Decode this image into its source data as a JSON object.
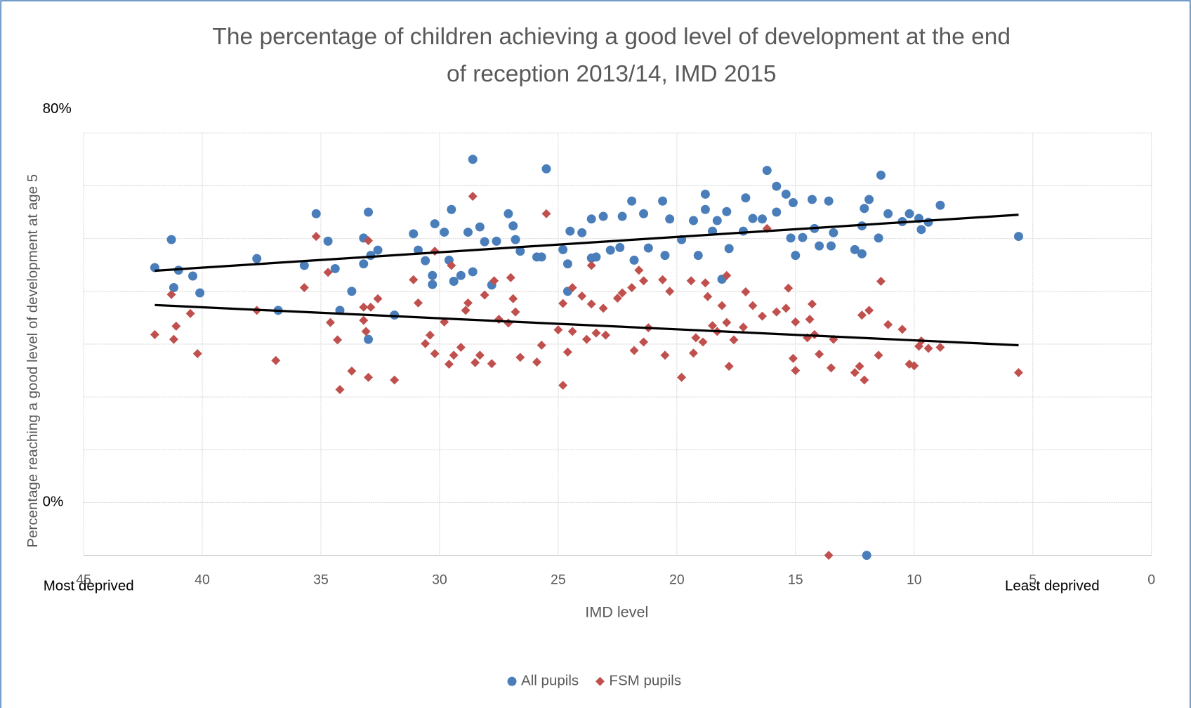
{
  "chart_data": {
    "type": "scatter",
    "title": [
      "The percentage of children achieving a good level of development at the end",
      "of reception 2013/14, IMD 2015"
    ],
    "x_label": "IMD level",
    "y_label": "Percentage reaching a good level of development  at age 5",
    "annotations": [
      "80%",
      "0%",
      "Most deprived",
      "Least deprived"
    ],
    "xlim": [
      45,
      0
    ],
    "xticks": [
      45,
      40,
      35,
      30,
      25,
      20,
      15,
      10,
      5,
      0
    ],
    "ylim": [
      -10,
      70
    ],
    "ygrid": [
      -10,
      0,
      10,
      20,
      30,
      40,
      50,
      60,
      70
    ],
    "legend": "bottom",
    "series": [
      {
        "name": "All pupils",
        "color": "#4a7ebb",
        "marker": "circle",
        "x": [
          42.0,
          41.3,
          41.2,
          41.0,
          40.4,
          40.1,
          37.7,
          36.8,
          35.7,
          35.2,
          34.7,
          34.4,
          34.2,
          33.7,
          33.2,
          33.2,
          33.0,
          32.9,
          33.0,
          32.6,
          31.9,
          31.1,
          30.9,
          30.6,
          30.3,
          30.3,
          30.2,
          29.8,
          29.6,
          29.5,
          29.4,
          29.1,
          28.8,
          28.6,
          28.6,
          28.3,
          28.1,
          27.8,
          27.6,
          27.1,
          26.9,
          26.8,
          26.6,
          25.9,
          25.7,
          25.5,
          24.8,
          24.6,
          24.6,
          24.5,
          24.0,
          23.6,
          23.6,
          23.4,
          23.1,
          22.8,
          22.4,
          22.3,
          21.9,
          21.8,
          21.4,
          21.2,
          20.6,
          20.5,
          20.3,
          19.8,
          19.3,
          19.1,
          18.8,
          18.8,
          18.5,
          18.3,
          18.1,
          17.9,
          17.8,
          17.2,
          17.1,
          16.8,
          16.4,
          16.2,
          15.8,
          15.8,
          15.4,
          15.2,
          15.1,
          15.0,
          14.7,
          14.3,
          14.2,
          14.0,
          13.6,
          13.5,
          13.4,
          12.5,
          12.2,
          12.2,
          12.1,
          11.9,
          11.5,
          11.4,
          11.1,
          10.5,
          10.2,
          9.8,
          9.7,
          9.4,
          8.9,
          5.6,
          12.0
        ],
        "values": [
          44.5,
          49.8,
          40.7,
          44.0,
          42.9,
          39.7,
          46.2,
          36.4,
          44.9,
          54.7,
          49.5,
          44.3,
          36.4,
          40.0,
          50.1,
          45.2,
          55.0,
          46.8,
          30.9,
          47.8,
          35.5,
          50.9,
          47.8,
          45.8,
          43.0,
          41.3,
          52.8,
          51.2,
          45.9,
          55.5,
          41.9,
          43.0,
          51.2,
          43.7,
          65.0,
          52.2,
          49.4,
          41.2,
          49.5,
          54.7,
          52.4,
          49.8,
          47.6,
          46.5,
          46.5,
          63.2,
          47.9,
          45.2,
          40.0,
          51.4,
          51.1,
          53.7,
          46.3,
          46.5,
          54.2,
          47.8,
          48.3,
          54.2,
          57.1,
          45.9,
          54.7,
          48.2,
          57.1,
          46.8,
          53.7,
          49.8,
          53.4,
          46.8,
          55.5,
          58.4,
          51.4,
          53.4,
          42.3,
          55.1,
          48.1,
          51.4,
          57.7,
          53.8,
          53.7,
          62.9,
          59.9,
          55.0,
          58.4,
          50.1,
          56.8,
          46.8,
          50.2,
          57.4,
          51.9,
          48.6,
          57.1,
          48.6,
          51.1,
          47.9,
          47.1,
          52.4,
          55.7,
          57.4,
          50.1,
          62.0,
          54.7,
          53.2,
          54.7,
          53.8,
          51.7,
          53.1,
          56.3,
          50.4,
          -10
        ],
        "trendline": {
          "x": [
            42,
            5.6
          ],
          "values": [
            43.9,
            54.5
          ]
        }
      },
      {
        "name": "FSM pupils",
        "color": "#c0504d",
        "marker": "diamond",
        "x": [
          42.0,
          41.3,
          41.2,
          41.1,
          40.5,
          40.2,
          37.7,
          36.9,
          35.7,
          35.2,
          34.7,
          34.6,
          34.3,
          34.2,
          33.7,
          33.2,
          33.2,
          33.1,
          33.0,
          33.0,
          32.9,
          32.6,
          31.9,
          31.1,
          30.9,
          30.6,
          30.4,
          30.2,
          30.2,
          29.8,
          29.6,
          29.5,
          29.4,
          29.1,
          28.9,
          28.8,
          28.6,
          28.5,
          28.3,
          28.1,
          27.8,
          27.7,
          27.5,
          27.1,
          27.0,
          26.9,
          26.8,
          26.6,
          25.9,
          25.7,
          25.5,
          25.0,
          24.8,
          24.8,
          24.6,
          24.4,
          24.4,
          24.0,
          23.8,
          23.6,
          23.6,
          23.4,
          23.1,
          23.0,
          22.5,
          22.3,
          21.9,
          21.8,
          21.6,
          21.4,
          21.4,
          21.2,
          20.6,
          20.5,
          20.3,
          19.8,
          19.4,
          19.3,
          19.2,
          18.9,
          18.8,
          18.7,
          18.5,
          18.3,
          18.1,
          17.9,
          17.9,
          17.8,
          17.6,
          17.2,
          17.1,
          16.8,
          16.4,
          16.2,
          15.8,
          15.4,
          15.3,
          15.1,
          15.0,
          15.0,
          14.5,
          14.4,
          14.3,
          14.2,
          14.0,
          13.6,
          13.5,
          13.4,
          12.5,
          12.3,
          12.2,
          12.1,
          11.9,
          11.5,
          11.4,
          11.1,
          10.5,
          10.2,
          10.0,
          9.8,
          9.7,
          9.4,
          8.9,
          5.6
        ],
        "values": [
          31.8,
          39.4,
          30.9,
          33.4,
          35.8,
          28.2,
          36.4,
          26.9,
          40.7,
          50.4,
          43.6,
          34.1,
          30.8,
          21.4,
          24.9,
          37.0,
          34.5,
          32.4,
          23.7,
          49.6,
          37.0,
          38.6,
          23.2,
          42.2,
          37.8,
          30.1,
          31.7,
          28.2,
          47.6,
          34.2,
          26.2,
          44.9,
          27.9,
          29.4,
          36.4,
          37.8,
          58.0,
          26.5,
          27.9,
          39.3,
          26.3,
          42.0,
          34.7,
          34.0,
          42.6,
          38.6,
          36.1,
          27.5,
          26.6,
          29.8,
          54.7,
          32.7,
          22.2,
          37.7,
          28.5,
          32.4,
          40.7,
          39.1,
          30.9,
          37.6,
          44.9,
          32.1,
          36.8,
          31.7,
          38.7,
          39.7,
          40.7,
          28.8,
          44.0,
          42.0,
          30.4,
          33.1,
          42.2,
          27.9,
          40.0,
          23.7,
          42.0,
          28.3,
          31.2,
          30.4,
          41.6,
          39.0,
          33.5,
          32.4,
          37.3,
          43.0,
          34.1,
          25.8,
          30.8,
          33.2,
          39.9,
          37.3,
          35.3,
          51.9,
          36.1,
          36.8,
          40.6,
          27.3,
          25.0,
          34.2,
          31.2,
          34.7,
          37.6,
          31.8,
          28.1,
          -10,
          25.5,
          30.9,
          24.6,
          25.8,
          35.5,
          23.2,
          36.4,
          27.9,
          41.9,
          33.7,
          32.8,
          26.2,
          25.9,
          29.6,
          30.6,
          29.2,
          29.4,
          24.6
        ],
        "trendline": {
          "x": [
            42,
            5.6
          ],
          "values": [
            37.4,
            29.8
          ]
        }
      }
    ]
  }
}
